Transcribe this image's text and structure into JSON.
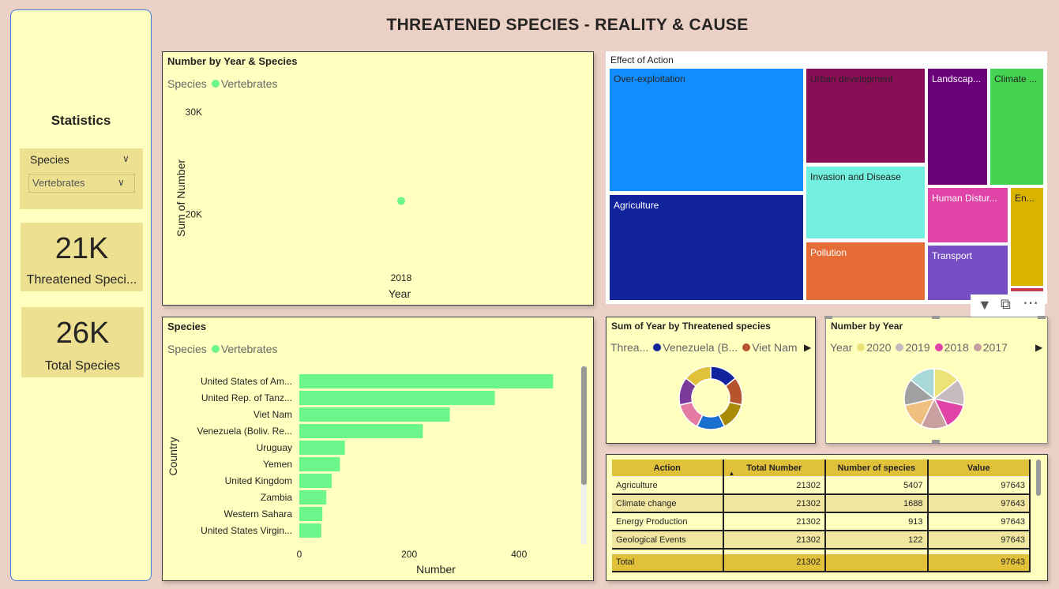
{
  "page_title": "THREATENED SPECIES - REALITY & CAUSE",
  "left_panel": {
    "title": "Statistics",
    "slicer": {
      "label": "Species",
      "value": "Vertebrates"
    },
    "cards": [
      {
        "value": "21K",
        "label": "Threatened Speci..."
      },
      {
        "value": "26K",
        "label": "Total Species"
      }
    ]
  },
  "line_chart": {
    "title": "Number by Year & Species",
    "legend_title": "Species",
    "ylabel": "Sum of Number",
    "xlabel": "Year"
  },
  "bar_chart": {
    "title": "Species",
    "legend_title": "Species",
    "ylabel": "Country",
    "xlabel": "Number"
  },
  "treemap": {
    "title": "Effect of Action",
    "items": [
      {
        "label": "Over-exploitation",
        "color": "#118dff"
      },
      {
        "label": "Agriculture",
        "color": "#12239e"
      },
      {
        "label": "Urban development",
        "color": "#8a0e56"
      },
      {
        "label": "Invasion and Disease",
        "color": "#72efdf"
      },
      {
        "label": "Pollution",
        "color": "#e66c37"
      },
      {
        "label": "Landscap...",
        "color": "#6b007b"
      },
      {
        "label": "Climate ...",
        "color": "#44d451"
      },
      {
        "label": "Human Distur...",
        "color": "#e044a7"
      },
      {
        "label": "En...",
        "color": "#d9b300"
      },
      {
        "label": "Transport",
        "color": "#744ec2"
      }
    ]
  },
  "donut_chart": {
    "title": "Sum of Year by Threatened species",
    "legend_title": "Threa...",
    "legend_items": [
      {
        "label": "Venezuela (B...",
        "color": "#12239e"
      },
      {
        "label": "Viet Nam",
        "color": "#b5542d"
      }
    ],
    "slice_colors": [
      "#12239e",
      "#b5542d",
      "#a98b06",
      "#1a6fcf",
      "#e27aa2",
      "#7a3a9a",
      "#e1c03a"
    ]
  },
  "pie_chart": {
    "title": "Number by Year",
    "legend_title": "Year",
    "legend_items": [
      {
        "label": "2020",
        "color": "#ede276"
      },
      {
        "label": "2019",
        "color": "#c7bbbf"
      },
      {
        "label": "2018",
        "color": "#e044a7"
      },
      {
        "label": "2017",
        "color": "#c8a0a0"
      }
    ],
    "slice_colors": [
      "#ede276",
      "#c7bbbf",
      "#e044a7",
      "#c8a0a0",
      "#f0c080",
      "#a0a0a0",
      "#a8d8d8"
    ]
  },
  "table": {
    "headers": [
      "Action",
      "Total Number",
      "Number of species",
      "Value"
    ],
    "rows": [
      [
        "Agriculture",
        "21302",
        "5407",
        "97643"
      ],
      [
        "Climate change",
        "21302",
        "1688",
        "97643"
      ],
      [
        "Energy Production",
        "21302",
        "913",
        "97643"
      ],
      [
        "Geological Events",
        "21302",
        "122",
        "97643"
      ]
    ],
    "total": [
      "Total",
      "21302",
      "",
      "97643"
    ]
  },
  "chart_data": [
    {
      "type": "scatter",
      "title": "Number by Year & Species",
      "xlabel": "Year",
      "ylabel": "Sum of Number",
      "series": [
        {
          "name": "Vertebrates",
          "color": "#6cf58a",
          "points": [
            {
              "x": 2018,
              "y": 21302
            }
          ]
        }
      ],
      "x_ticks": [
        "2018"
      ],
      "y_ticks": [
        "20K",
        "30K"
      ],
      "ylim": [
        15000,
        32000
      ]
    },
    {
      "type": "bar",
      "title": "Species",
      "xlabel": "Number",
      "ylabel": "Country",
      "orientation": "horizontal",
      "series": [
        {
          "name": "Vertebrates",
          "color": "#6cf58a"
        }
      ],
      "categories": [
        "United States of Am...",
        "United Rep. of Tanz...",
        "Viet Nam",
        "Venezuela (Boliv. Re...",
        "Uruguay",
        "Yemen",
        "United Kingdom",
        "Zambia",
        "Western Sahara",
        "United States Virgin..."
      ],
      "values": [
        462,
        356,
        274,
        225,
        83,
        74,
        59,
        49,
        42,
        40
      ],
      "x_ticks": [
        0,
        200,
        400
      ],
      "xlim": [
        0,
        520
      ]
    }
  ]
}
